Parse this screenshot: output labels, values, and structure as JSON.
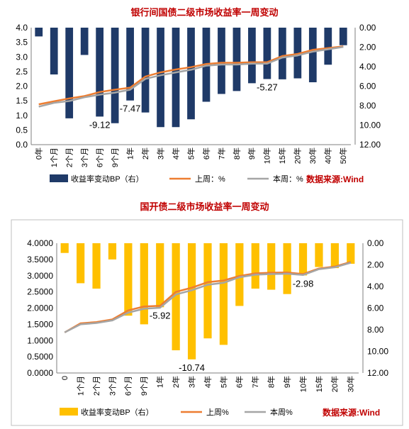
{
  "chart_data": [
    {
      "type": "bar+line",
      "title": "银行间国债二级市场收益率一周变动",
      "source": "数据来源:Wind",
      "categories": [
        "0年",
        "1个月",
        "2个月",
        "3个月",
        "6个月",
        "9个月",
        "1年",
        "2年",
        "3年",
        "4年",
        "5年",
        "6年",
        "7年",
        "8年",
        "9年",
        "10年",
        "15年",
        "20年",
        "30年",
        "40年",
        "50年"
      ],
      "bar_series": {
        "name": "收益率变动BP（右）",
        "color": "#1f3a68",
        "values": [
          -0.9,
          -4.8,
          -9.3,
          -2.8,
          -9.12,
          -9.8,
          -7.47,
          -8.7,
          -10.2,
          -10.2,
          -9.4,
          -7.6,
          -6.8,
          -6.5,
          -5.7,
          -5.27,
          -5.3,
          -5.2,
          -5.6,
          -3.8,
          -1.8
        ]
      },
      "line_series": [
        {
          "name": "上周：%",
          "color": "#ed7d31",
          "values": [
            1.38,
            1.48,
            1.58,
            1.66,
            1.8,
            1.88,
            1.95,
            2.33,
            2.47,
            2.57,
            2.65,
            2.76,
            2.8,
            2.8,
            2.82,
            2.82,
            3.03,
            3.1,
            3.24,
            3.3,
            3.36
          ]
        },
        {
          "name": "本周：%",
          "color": "#a5a5a5",
          "values": [
            1.3,
            1.43,
            1.49,
            1.62,
            1.71,
            1.78,
            1.88,
            2.25,
            2.37,
            2.47,
            2.56,
            2.7,
            2.74,
            2.74,
            2.77,
            2.77,
            2.98,
            3.05,
            3.18,
            3.26,
            3.34
          ]
        }
      ],
      "annotations": [
        {
          "category": "6个月",
          "text": "-9.12"
        },
        {
          "category": "1年",
          "text": "-7.47"
        },
        {
          "category": "10年",
          "text": "-5.27"
        }
      ],
      "ylim_left": [
        0,
        4.0
      ],
      "left_ticks": [
        "0.0",
        "0.5",
        "1.0",
        "1.5",
        "2.0",
        "2.5",
        "3.0",
        "3.5",
        "4.0"
      ],
      "ylim_right_inverted": [
        0,
        12
      ],
      "right_ticks": [
        "0.00",
        "2.00",
        "4.00",
        "6.00",
        "8.00",
        "10.00",
        "12.00"
      ],
      "legend_position": "bottom"
    },
    {
      "type": "bar+line",
      "title": "国开债二级市场收益率一周变动",
      "source": "数据来源:Wind",
      "categories": [
        "0",
        "1个月",
        "2个月",
        "3个月",
        "6个月",
        "9个月",
        "1年",
        "2年",
        "3年",
        "4年",
        "5年",
        "6年",
        "7年",
        "8年",
        "9年",
        "10年",
        "15年",
        "20年",
        "30年"
      ],
      "bar_series": {
        "name": "收益率变动BP（右）",
        "color": "#ffc000",
        "values": [
          -0.9,
          -3.7,
          -4.2,
          -1.5,
          -6.7,
          -7.5,
          -5.92,
          -9.9,
          -10.74,
          -8.8,
          -9.4,
          -5.8,
          -4.2,
          -4.3,
          -4.7,
          -2.98,
          -2.2,
          -2.3,
          -1.9
        ]
      },
      "line_series": [
        {
          "name": "上周%",
          "color": "#ed7d31",
          "values": [
            1.25,
            1.53,
            1.57,
            1.65,
            1.93,
            2.05,
            2.07,
            2.5,
            2.63,
            2.8,
            2.85,
            2.99,
            3.07,
            3.09,
            3.1,
            3.05,
            3.22,
            3.28,
            3.42
          ]
        },
        {
          "name": "本周%",
          "color": "#a5a5a5",
          "values": [
            1.25,
            1.5,
            1.54,
            1.62,
            1.86,
            1.98,
            2.01,
            2.42,
            2.55,
            2.72,
            2.78,
            2.95,
            3.03,
            3.05,
            3.06,
            3.02,
            3.2,
            3.26,
            3.4
          ]
        }
      ],
      "annotations": [
        {
          "category": "1年",
          "text": "-5.92"
        },
        {
          "category": "3年",
          "text": "-10.74"
        },
        {
          "category": "10年",
          "text": "-2.98"
        }
      ],
      "ylim_left": [
        0,
        4.0
      ],
      "left_ticks": [
        "0.0000",
        "0.5000",
        "1.0000",
        "1.5000",
        "2.0000",
        "2.5000",
        "3.0000",
        "3.5000",
        "4.0000"
      ],
      "ylim_right_inverted": [
        0,
        12
      ],
      "right_ticks": [
        "0.00",
        "2.00",
        "4.00",
        "6.00",
        "8.00",
        "10.00",
        "12.00"
      ],
      "legend_position": "bottom"
    }
  ]
}
